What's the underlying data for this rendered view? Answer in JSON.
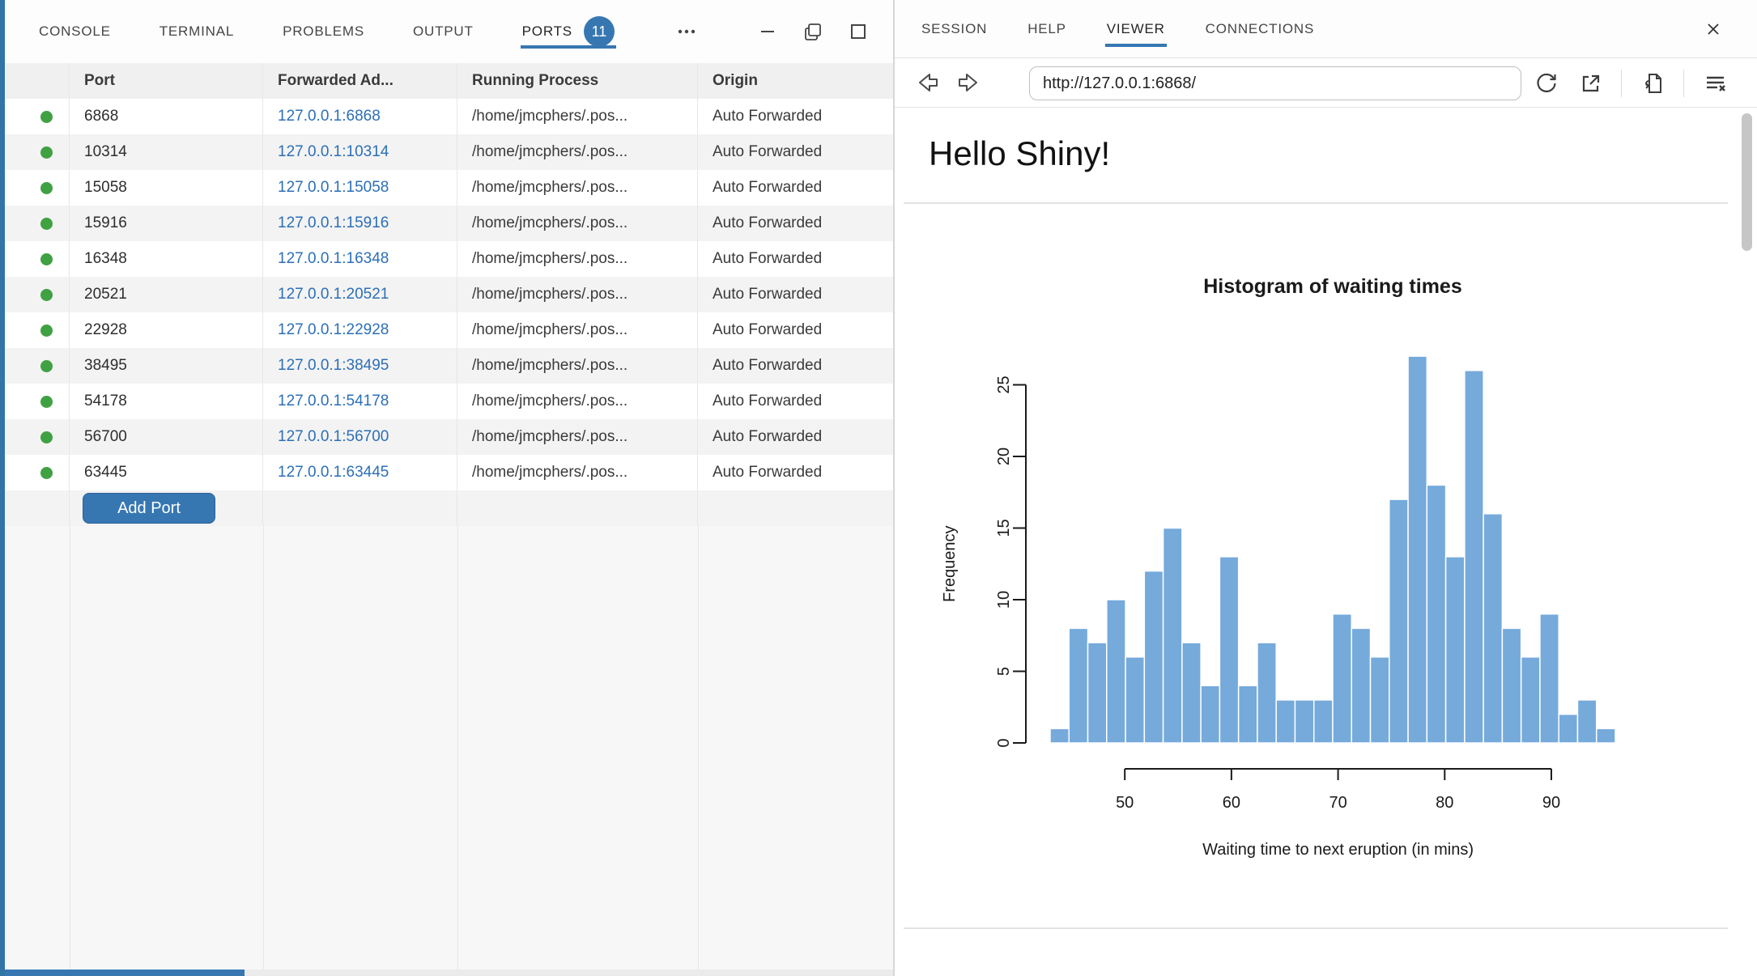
{
  "left_panel": {
    "tabs": [
      "CONSOLE",
      "TERMINAL",
      "PROBLEMS",
      "OUTPUT",
      "PORTS"
    ],
    "active_tab": "PORTS",
    "ports_badge": "11",
    "table": {
      "headers": {
        "port": "Port",
        "forwarded": "Forwarded Ad...",
        "process": "Running Process",
        "origin": "Origin"
      },
      "rows": [
        {
          "port": "6868",
          "address": "127.0.0.1:6868",
          "process": "/home/jmcphers/.pos...",
          "origin": "Auto Forwarded"
        },
        {
          "port": "10314",
          "address": "127.0.0.1:10314",
          "process": "/home/jmcphers/.pos...",
          "origin": "Auto Forwarded"
        },
        {
          "port": "15058",
          "address": "127.0.0.1:15058",
          "process": "/home/jmcphers/.pos...",
          "origin": "Auto Forwarded"
        },
        {
          "port": "15916",
          "address": "127.0.0.1:15916",
          "process": "/home/jmcphers/.pos...",
          "origin": "Auto Forwarded"
        },
        {
          "port": "16348",
          "address": "127.0.0.1:16348",
          "process": "/home/jmcphers/.pos...",
          "origin": "Auto Forwarded"
        },
        {
          "port": "20521",
          "address": "127.0.0.1:20521",
          "process": "/home/jmcphers/.pos...",
          "origin": "Auto Forwarded"
        },
        {
          "port": "22928",
          "address": "127.0.0.1:22928",
          "process": "/home/jmcphers/.pos...",
          "origin": "Auto Forwarded"
        },
        {
          "port": "38495",
          "address": "127.0.0.1:38495",
          "process": "/home/jmcphers/.pos...",
          "origin": "Auto Forwarded"
        },
        {
          "port": "54178",
          "address": "127.0.0.1:54178",
          "process": "/home/jmcphers/.pos...",
          "origin": "Auto Forwarded"
        },
        {
          "port": "56700",
          "address": "127.0.0.1:56700",
          "process": "/home/jmcphers/.pos...",
          "origin": "Auto Forwarded"
        },
        {
          "port": "63445",
          "address": "127.0.0.1:63445",
          "process": "/home/jmcphers/.pos...",
          "origin": "Auto Forwarded"
        }
      ],
      "add_port_label": "Add Port"
    }
  },
  "right_panel": {
    "tabs": [
      "SESSION",
      "HELP",
      "VIEWER",
      "CONNECTIONS"
    ],
    "active_tab": "VIEWER",
    "url": "http://127.0.0.1:6868/",
    "page_title": "Hello Shiny!"
  },
  "chart_data": {
    "type": "bar",
    "title": "Histogram of waiting times",
    "xlabel": "Waiting time to next eruption (in mins)",
    "ylabel": "Frequency",
    "bin_start": 43,
    "bin_end": 96,
    "bin_count": 30,
    "counts": [
      1,
      8,
      7,
      10,
      6,
      12,
      15,
      7,
      4,
      13,
      4,
      7,
      3,
      3,
      3,
      9,
      8,
      6,
      17,
      27,
      18,
      13,
      26,
      16,
      8,
      6,
      9,
      2,
      3,
      1
    ],
    "x_ticks": [
      50,
      60,
      70,
      80,
      90
    ],
    "y_ticks": [
      0,
      5,
      10,
      15,
      20,
      25
    ],
    "ylim": [
      0,
      25
    ],
    "grid": false,
    "legend": false,
    "bar_color": "#75aadb",
    "bar_border": "#ffffff"
  },
  "colors": {
    "accent_blue": "#3677b2",
    "link_blue": "#2c6fb7",
    "status_green": "#3fa142",
    "bar_fill": "#75aadb"
  }
}
